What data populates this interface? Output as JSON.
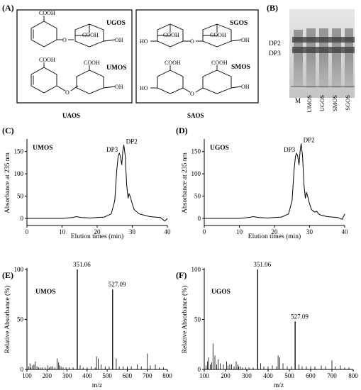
{
  "panels": {
    "A": "(A)",
    "B": "(B)",
    "C": "(C)",
    "D": "(D)",
    "E": "(E)",
    "F": "(F)"
  },
  "structures": {
    "left_box_caption": "UAOS",
    "right_box_caption": "SAOS",
    "ugos": "UGOS",
    "umos": "UMOS",
    "sgos": "SGOS",
    "smos": "SMOS",
    "cooh": "COOH",
    "oh": "OH",
    "ho": "HO",
    "o": "O"
  },
  "tlc": {
    "dp2": "DP2",
    "dp3": "DP3",
    "lanes": [
      "M",
      "UMOS",
      "UGOS",
      "SMOS",
      "SGOS"
    ]
  },
  "chart_data": [
    {
      "panel": "C",
      "type": "line",
      "sample": "UMOS",
      "xlabel": "Elution times (min)",
      "ylabel": "Absorbance at 235 nm",
      "xlim": [
        0,
        40
      ],
      "ylim": [
        0,
        175
      ],
      "xticks": [
        0,
        10,
        20,
        30,
        40
      ],
      "yticks": [
        0,
        50,
        100,
        150
      ],
      "peak_labels": [
        {
          "text": "DP3",
          "x": 26.3,
          "y": 146
        },
        {
          "text": "DP2",
          "x": 27.6,
          "y": 165
        }
      ],
      "x": [
        0,
        10,
        13,
        14,
        15.5,
        18,
        22,
        24,
        25,
        25.6,
        26,
        26.3,
        26.6,
        27,
        27.3,
        27.6,
        28,
        28.4,
        28.8,
        29.1,
        29.4,
        29.8,
        30.5,
        32,
        35,
        38,
        39.3,
        40
      ],
      "y": [
        0,
        0,
        2,
        4,
        2,
        1,
        3,
        10,
        40,
        110,
        140,
        146,
        140,
        120,
        150,
        165,
        140,
        75,
        45,
        55,
        50,
        38,
        20,
        10,
        4,
        2,
        -6,
        0
      ]
    },
    {
      "panel": "D",
      "type": "line",
      "sample": "UGOS",
      "xlabel": "Elution times (min)",
      "ylabel": "Absorbance at 235 nm",
      "xlim": [
        0,
        40
      ],
      "ylim": [
        0,
        175
      ],
      "xticks": [
        0,
        10,
        20,
        30,
        40
      ],
      "yticks": [
        0,
        50,
        100,
        150
      ],
      "peak_labels": [
        {
          "text": "DP3",
          "x": 26.3,
          "y": 146
        },
        {
          "text": "DP2",
          "x": 27.6,
          "y": 168
        }
      ],
      "x": [
        0,
        10,
        12.5,
        14,
        15.5,
        18,
        22,
        24,
        25,
        25.6,
        26,
        26.3,
        26.6,
        27,
        27.3,
        27.6,
        28,
        28.4,
        28.8,
        29.1,
        29.4,
        29.8,
        30.5,
        31.5,
        32,
        32.6,
        33,
        35,
        38,
        39.3,
        40
      ],
      "y": [
        0,
        0,
        2,
        4,
        2,
        1,
        3,
        10,
        40,
        110,
        140,
        146,
        140,
        120,
        150,
        168,
        140,
        75,
        45,
        58,
        52,
        38,
        20,
        14,
        16,
        10,
        8,
        4,
        2,
        -2,
        10
      ]
    },
    {
      "panel": "E",
      "type": "bar",
      "sample": "UMOS",
      "xlabel": "m/z",
      "ylabel": "Relative Absorbance (%)",
      "xlim": [
        100,
        800
      ],
      "ylim": [
        0,
        100
      ],
      "xticks": [
        100,
        200,
        300,
        400,
        500,
        600,
        700,
        800
      ],
      "yticks": [
        0,
        50,
        100
      ],
      "peak_labels": [
        {
          "text": "351.06",
          "x": 351.06,
          "y": 100
        },
        {
          "text": "527.09",
          "x": 527.09,
          "y": 80
        }
      ],
      "x": [
        108,
        115,
        120,
        128,
        135,
        141,
        150,
        158,
        165,
        175,
        190,
        205,
        212,
        220,
        228,
        240,
        250,
        258,
        262,
        270,
        280,
        295,
        310,
        330,
        351.06,
        365,
        380,
        400,
        420,
        440,
        447,
        455,
        470,
        490,
        510,
        527.09,
        545,
        560,
        580,
        600,
        620,
        650,
        670,
        700,
        715,
        740,
        760,
        780
      ],
      "y": [
        3,
        6,
        2,
        4,
        5,
        8,
        3,
        2,
        2,
        2,
        2,
        4,
        2,
        3,
        3,
        2,
        11,
        7,
        4,
        3,
        2,
        2,
        2,
        2,
        100,
        4,
        2,
        2,
        3,
        2,
        13,
        11,
        5,
        3,
        3,
        80,
        11,
        3,
        3,
        3,
        3,
        5,
        3,
        16,
        4,
        5,
        2,
        2
      ]
    },
    {
      "panel": "F",
      "type": "bar",
      "sample": "UGOS",
      "xlabel": "m/z",
      "ylabel": "Relative Absorbance (%)",
      "xlim": [
        100,
        800
      ],
      "ylim": [
        0,
        100
      ],
      "xticks": [
        100,
        200,
        300,
        400,
        500,
        600,
        700,
        800
      ],
      "yticks": [
        0,
        50,
        100
      ],
      "peak_labels": [
        {
          "text": "351.06",
          "x": 351.06,
          "y": 100
        },
        {
          "text": "527.09",
          "x": 527.09,
          "y": 48
        }
      ],
      "x": [
        108,
        115,
        120,
        128,
        135,
        141,
        150,
        158,
        165,
        175,
        190,
        205,
        212,
        220,
        228,
        240,
        250,
        258,
        262,
        270,
        280,
        295,
        310,
        330,
        351.06,
        365,
        380,
        400,
        420,
        440,
        447,
        455,
        470,
        490,
        510,
        527.09,
        545,
        560,
        580,
        600,
        620,
        650,
        670,
        700,
        715,
        740,
        760,
        780
      ],
      "y": [
        4,
        8,
        12,
        5,
        7,
        26,
        14,
        5,
        10,
        6,
        5,
        8,
        4,
        5,
        5,
        3,
        8,
        5,
        3,
        3,
        2,
        2,
        2,
        2,
        100,
        6,
        3,
        3,
        4,
        3,
        14,
        12,
        6,
        3,
        3,
        48,
        5,
        3,
        3,
        3,
        3,
        4,
        3,
        9,
        3,
        4,
        2,
        2
      ]
    }
  ]
}
